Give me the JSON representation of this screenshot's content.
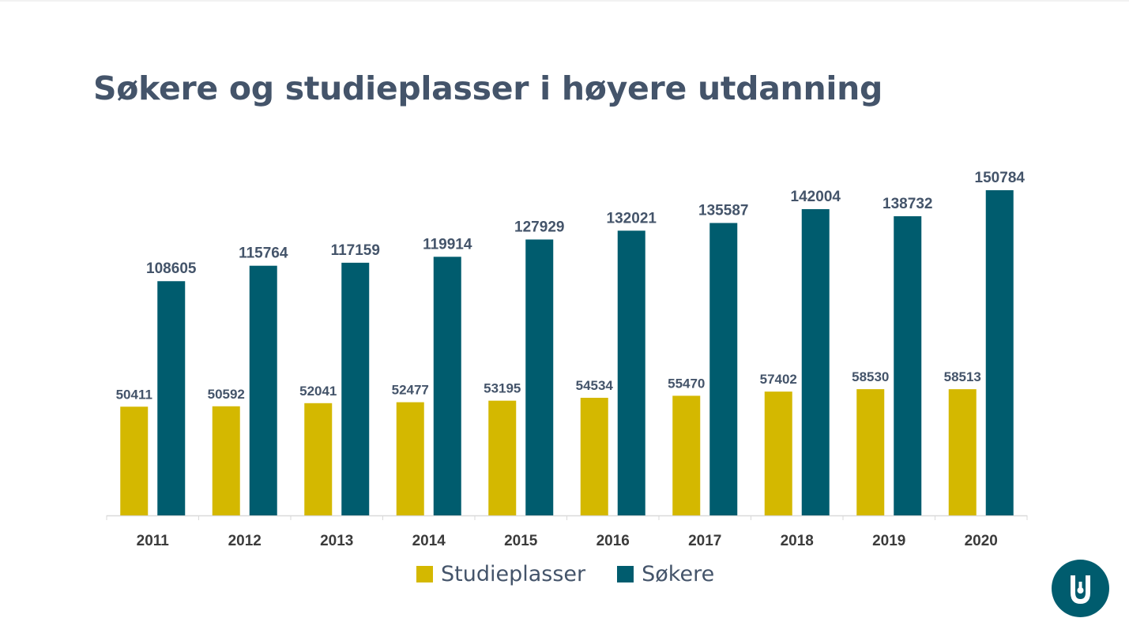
{
  "title": "Søkere og studieplasser i høyere utdanning",
  "colors": {
    "studieplasser": "#d4b800",
    "sokere": "#005c6e",
    "title": "#44546a",
    "axis_text": "#3b3b3b",
    "label_text": "#44546a",
    "logo": "#005c6e"
  },
  "logo": {
    "icon": "university-logo-icon"
  },
  "chart_data": {
    "type": "bar",
    "categories": [
      "2011",
      "2012",
      "2013",
      "2014",
      "2015",
      "2016",
      "2017",
      "2018",
      "2019",
      "2020"
    ],
    "series": [
      {
        "name": "Studieplasser",
        "values": [
          50411,
          50592,
          52041,
          52477,
          53195,
          54534,
          55470,
          57402,
          58530,
          58513
        ]
      },
      {
        "name": "Søkere",
        "values": [
          108605,
          115764,
          117159,
          119914,
          127929,
          132021,
          135587,
          142004,
          138732,
          150784
        ]
      }
    ],
    "title": "",
    "xlabel": "",
    "ylabel": "",
    "ylim": [
      0,
      150784
    ],
    "grid": false,
    "legend": "bottom",
    "data_labels": true
  }
}
